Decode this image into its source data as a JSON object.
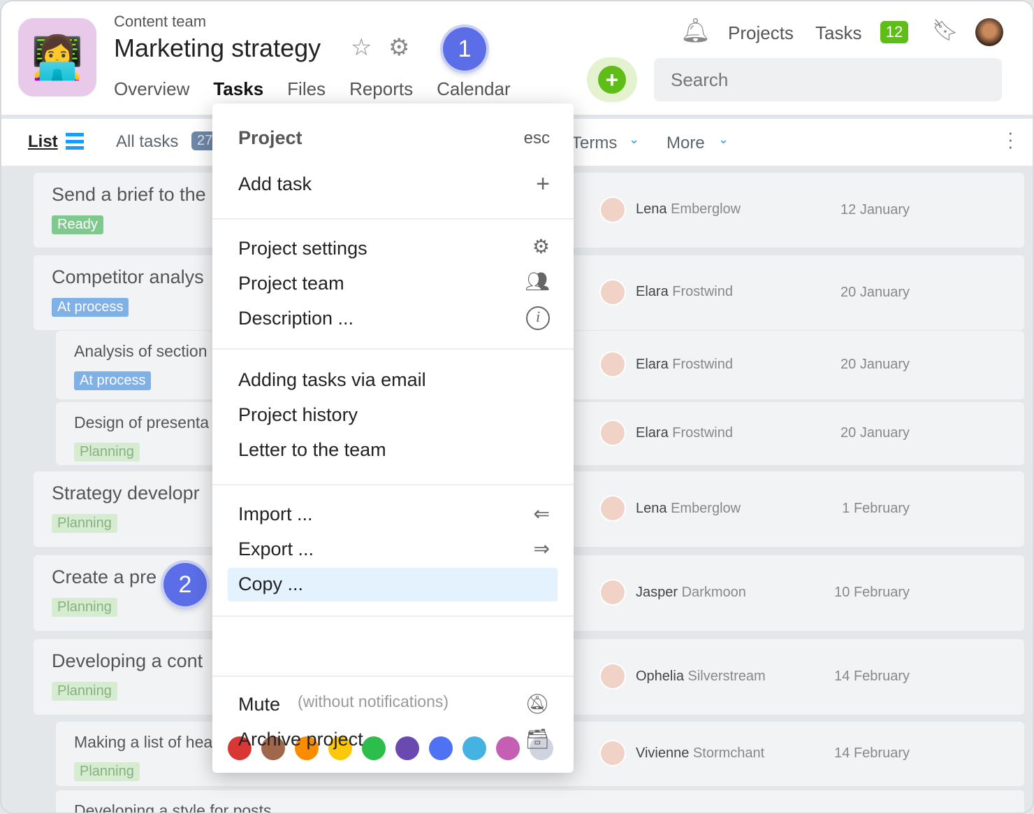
{
  "header": {
    "team": "Content team",
    "title": "Marketing strategy",
    "tabs": [
      "Overview",
      "Tasks",
      "Files",
      "Reports",
      "Calendar"
    ],
    "active_tab": "Tasks",
    "nav": {
      "projects": "Projects",
      "tasks": "Tasks",
      "tasks_count": "12"
    },
    "search_placeholder": "Search"
  },
  "steps": [
    "1",
    "2"
  ],
  "toolbar": {
    "view": "List",
    "all_tasks": "All tasks",
    "count": "27",
    "terms": "Terms",
    "more": "More"
  },
  "tasks": [
    {
      "title": "Send a brief to the",
      "status": "Ready",
      "first": "Lena",
      "last": "Emberglow",
      "date": "12 January"
    },
    {
      "title": "Competitor analys",
      "status": "At process",
      "first": "Elara",
      "last": "Frostwind",
      "date": "20 January"
    },
    {
      "title": "Analysis of section",
      "status": "At process",
      "first": "Elara",
      "last": "Frostwind",
      "date": "20 January"
    },
    {
      "title": "Design of presenta",
      "status": "Planning",
      "first": "Elara",
      "last": "Frostwind",
      "date": "20 January"
    },
    {
      "title": "Strategy developr",
      "status": "Planning",
      "first": "Lena",
      "last": "Emberglow",
      "date": "1 February"
    },
    {
      "title": "Create a pre",
      "status": "Planning",
      "first": "Jasper",
      "last": "Darkmoon",
      "date": "10 February"
    },
    {
      "title": "Developing a cont",
      "status": "Planning",
      "first": "Ophelia",
      "last": "Silverstream",
      "date": "14 February"
    },
    {
      "title": "Making a list of hea",
      "status": "Planning",
      "first": "Vivienne",
      "last": "Stormchant",
      "date": "14 February"
    },
    {
      "title": "Developing a style for posts"
    }
  ],
  "menu": {
    "title": "Project",
    "esc": "esc",
    "add_task": "Add task",
    "settings": "Project settings",
    "team": "Project team",
    "description": "Description ...",
    "email": "Adding tasks via email",
    "history": "Project history",
    "letter": "Letter to the team",
    "import": "Import ...",
    "export": "Export ...",
    "copy": "Copy ...",
    "mute": "Mute",
    "mute_note": "(without notifications)",
    "archive": "Archive project",
    "colors": [
      "#d93636",
      "#a0674a",
      "#fb8c00",
      "#fdc70c",
      "#2cbd4a",
      "#6a4ab0",
      "#4f72f5",
      "#45b3e2",
      "#c45fb4",
      "#d0d3e0"
    ]
  }
}
